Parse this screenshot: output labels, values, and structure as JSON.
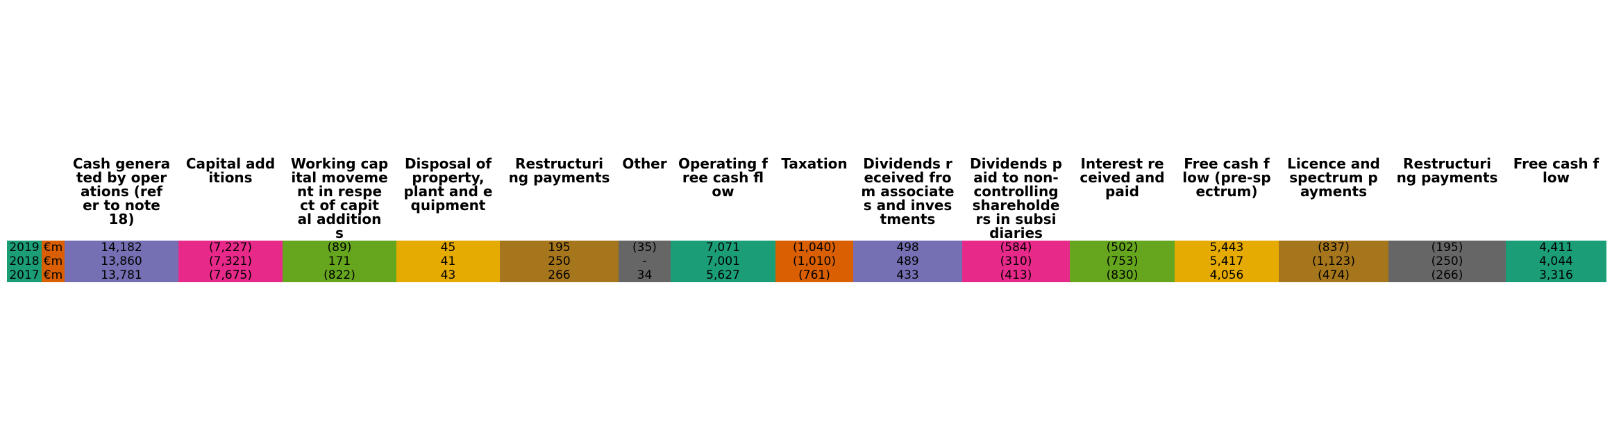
{
  "chart_data": {
    "type": "table",
    "columns": [
      {
        "header": "",
        "header_lines": [],
        "color": "#1b9e77",
        "values": [
          "2019",
          "2018",
          "2017"
        ]
      },
      {
        "header": "",
        "header_lines": [],
        "color": "#d95f02",
        "values": [
          "€m",
          "€m",
          "€m"
        ]
      },
      {
        "header": "Cash generated by operations (refer to note 18)",
        "header_lines": [
          "Cash genera",
          "ted by oper",
          "ations (ref",
          "er to note",
          "18)"
        ],
        "color": "#7570b3",
        "values": [
          "14,182",
          "13,860",
          "13,781"
        ]
      },
      {
        "header": "Capital additions",
        "header_lines": [
          "Capital add",
          "itions"
        ],
        "color": "#e7298a",
        "values": [
          "(7,227)",
          "(7,321)",
          "(7,675)"
        ]
      },
      {
        "header": "Working capital movement in respect of capital additions",
        "header_lines": [
          "Working cap",
          "ital moveme",
          "nt in respe",
          "ct of capit",
          "al addition",
          "s"
        ],
        "color": "#66a61e",
        "values": [
          "(89)",
          "171",
          "(822)"
        ]
      },
      {
        "header": "Disposal of property, plant and equipment",
        "header_lines": [
          "Disposal of",
          "property,",
          "plant and e",
          "quipment"
        ],
        "color": "#e6ab02",
        "values": [
          "45",
          "41",
          "43"
        ]
      },
      {
        "header": "Restructuring payments",
        "header_lines": [
          "Restructuri",
          "ng payments"
        ],
        "color": "#a6761d",
        "values": [
          "195",
          "250",
          "266"
        ]
      },
      {
        "header": "Other",
        "header_lines": [
          "Other"
        ],
        "color": "#666666",
        "values": [
          "(35)",
          "-",
          "34"
        ]
      },
      {
        "header": "Operating free cash flow",
        "header_lines": [
          "Operating f",
          "ree cash fl",
          "ow"
        ],
        "color": "#1b9e77",
        "values": [
          "7,071",
          "7,001",
          "5,627"
        ]
      },
      {
        "header": "Taxation",
        "header_lines": [
          "Taxation"
        ],
        "color": "#d95f02",
        "values": [
          "(1,040)",
          "(1,010)",
          "(761)"
        ]
      },
      {
        "header": "Dividends received from associates and investments",
        "header_lines": [
          "Dividends r",
          "eceived fro",
          "m associate",
          "s and inves",
          "tments"
        ],
        "color": "#7570b3",
        "values": [
          "498",
          "489",
          "433"
        ]
      },
      {
        "header": "Dividends paid to non-controlling shareholders in subsidiaries",
        "header_lines": [
          "Dividends p",
          "aid to non-",
          "controlling",
          "shareholde",
          "rs in subsi",
          "diaries"
        ],
        "color": "#e7298a",
        "values": [
          "(584)",
          "(310)",
          "(413)"
        ]
      },
      {
        "header": "Interest received and paid",
        "header_lines": [
          "Interest re",
          "ceived and",
          "paid"
        ],
        "color": "#66a61e",
        "values": [
          "(502)",
          "(753)",
          "(830)"
        ]
      },
      {
        "header": "Free cash flow (pre-spectrum)",
        "header_lines": [
          "Free cash f",
          "low (pre-sp",
          "ectrum)"
        ],
        "color": "#e6ab02",
        "values": [
          "5,443",
          "5,417",
          "4,056"
        ]
      },
      {
        "header": "Licence and spectrum payments",
        "header_lines": [
          "Licence and",
          "spectrum p",
          "ayments"
        ],
        "color": "#a6761d",
        "values": [
          "(837)",
          "(1,123)",
          "(474)"
        ]
      },
      {
        "header": "Restructuring payments",
        "header_lines": [
          "Restructuri",
          "ng payments"
        ],
        "color": "#666666",
        "values": [
          "(195)",
          "(250)",
          "(266)"
        ]
      },
      {
        "header": "Free cash flow",
        "header_lines": [
          "Free cash f",
          "low"
        ],
        "color": "#1b9e77",
        "values": [
          "4,411",
          "4,044",
          "3,316"
        ]
      }
    ]
  }
}
